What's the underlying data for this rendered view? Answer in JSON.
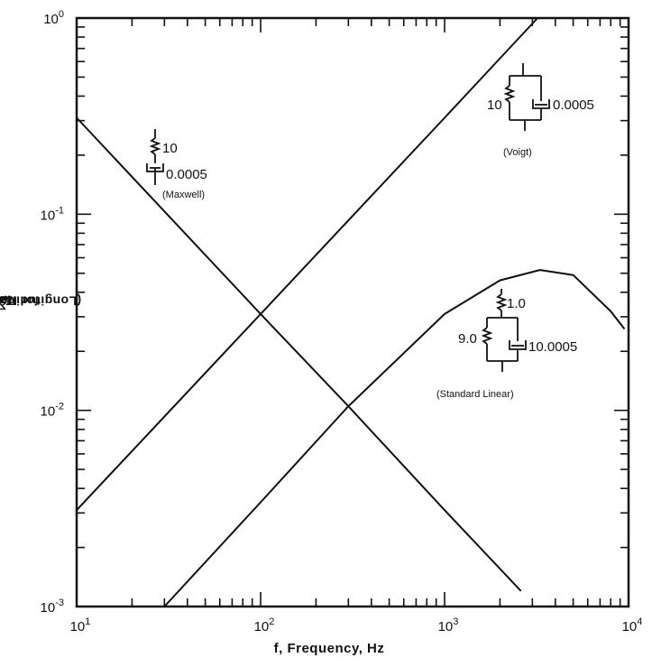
{
  "chart_data": {
    "type": "line",
    "xscale": "log",
    "yscale": "log",
    "xlim": [
      10,
      10000
    ],
    "ylim": [
      0.001,
      1
    ],
    "xlabel": "f,  Frequency,  Hz",
    "ylabel": {
      "prefix": "Tan ",
      "symbol": "δ",
      "suffix": "  (Longitudinal) Scale x 10",
      "exp": "3",
      "tail": "  for Maxwell"
    },
    "x_ticks": [
      {
        "base": "10",
        "exp": "1",
        "value": 10
      },
      {
        "base": "10",
        "exp": "2",
        "value": 100
      },
      {
        "base": "10",
        "exp": "3",
        "value": 1000
      },
      {
        "base": "10",
        "exp": "4",
        "value": 10000
      }
    ],
    "y_ticks": [
      {
        "base": "10",
        "exp": "-3",
        "value": 0.001
      },
      {
        "base": "10",
        "exp": "-2",
        "value": 0.01
      },
      {
        "base": "10",
        "exp": "-1",
        "value": 0.1
      },
      {
        "base": "10",
        "exp": "0",
        "value": 1
      }
    ],
    "series": [
      {
        "name": "Maxwell",
        "x": [
          10,
          100,
          300,
          1000,
          2600
        ],
        "y": [
          0.31,
          0.031,
          0.0105,
          0.0031,
          0.0012
        ]
      },
      {
        "name": "Voigt",
        "x": [
          10,
          100,
          1000,
          3200
        ],
        "y": [
          0.0031,
          0.031,
          0.31,
          1.0
        ]
      },
      {
        "name": "Standard Linear",
        "x": [
          30,
          100,
          300,
          1000,
          2000,
          3300,
          5000,
          8000,
          9500
        ],
        "y": [
          0.001,
          0.0034,
          0.0105,
          0.031,
          0.046,
          0.052,
          0.049,
          0.032,
          0.026
        ]
      }
    ],
    "annotations": {
      "maxwell": {
        "spring": "10",
        "dashpot": "0.0005",
        "label": "(Maxwell)"
      },
      "voigt": {
        "spring": "10",
        "dashpot": "0.0005",
        "label": "(Voigt)"
      },
      "standard_linear": {
        "spring_top": "1.0",
        "spring_side": "9.0",
        "dashpot": "10.0005",
        "label": "(Standard Linear)"
      }
    },
    "grid": false,
    "color": "#111111"
  }
}
